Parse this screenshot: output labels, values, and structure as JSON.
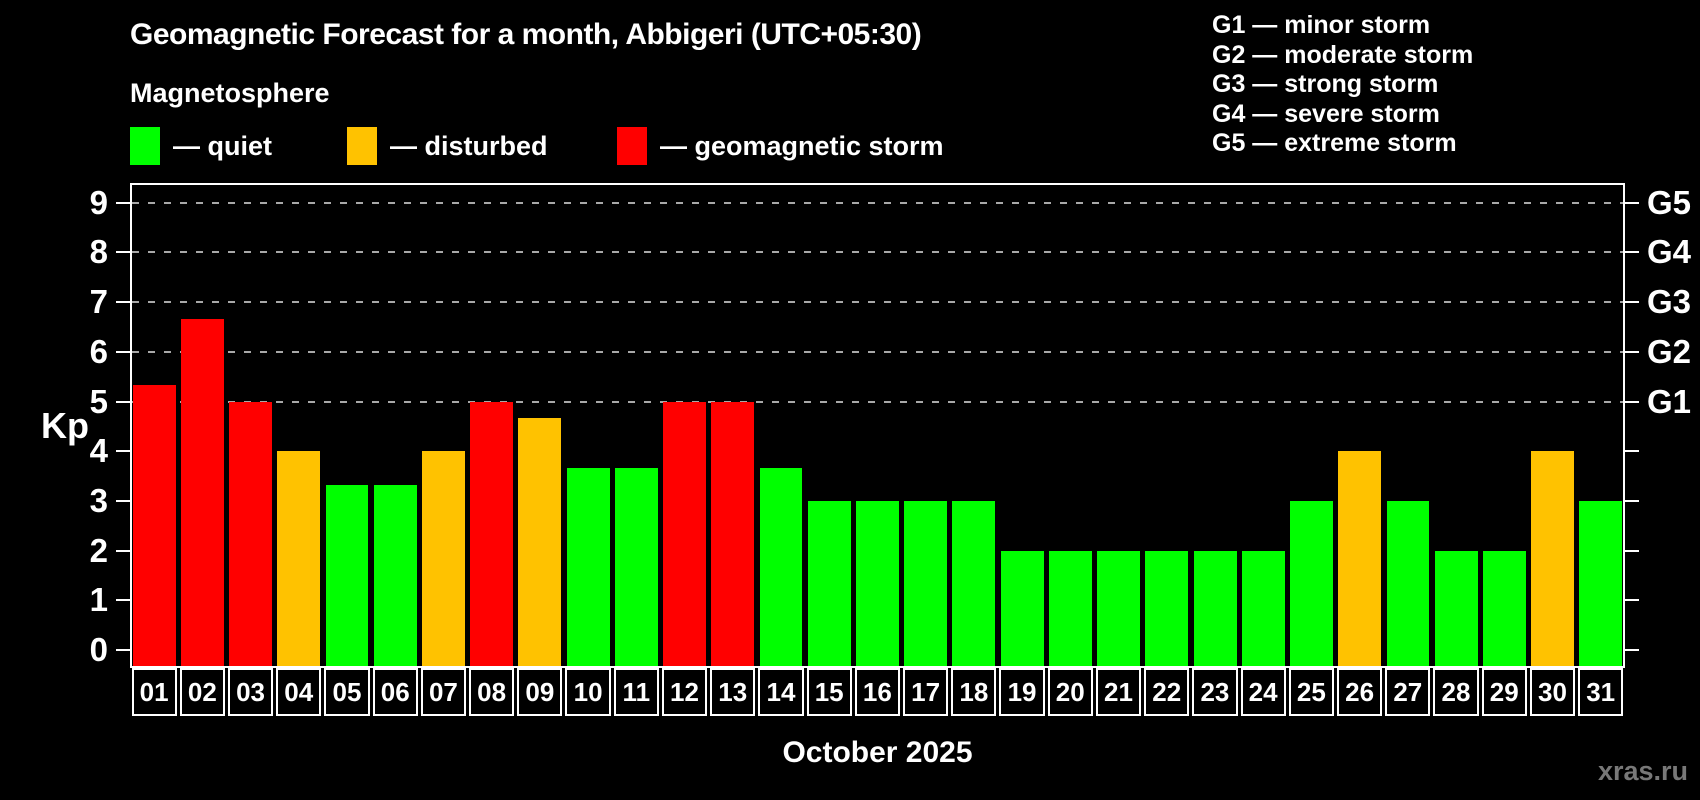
{
  "title": "Geomagnetic Forecast for a month, Abbigeri (UTC+05:30)",
  "subtitle": "Magnetosphere",
  "watermark": "xras.ru",
  "legend": {
    "items": [
      {
        "name": "quiet",
        "label": "— quiet",
        "color": "#00ff00",
        "x": 130
      },
      {
        "name": "disturbed",
        "label": "— disturbed",
        "color": "#ffc200",
        "x": 347
      },
      {
        "name": "storm",
        "label": "— geomagnetic storm",
        "color": "#ff0000",
        "x": 617
      }
    ]
  },
  "g_legend": [
    "G1 — minor storm",
    "G2 — moderate storm",
    "G3 — strong storm",
    "G4 — severe storm",
    "G5 — extreme storm"
  ],
  "chart_data": {
    "type": "bar",
    "title": "Geomagnetic Forecast for a month, Abbigeri (UTC+05:30)",
    "xlabel": "October 2025",
    "ylabel": "Kp",
    "ylim": [
      0,
      9
    ],
    "y_ticks": [
      0,
      1,
      2,
      3,
      4,
      5,
      6,
      7,
      8,
      9
    ],
    "gridlines_at": [
      5,
      6,
      7,
      8,
      9
    ],
    "grid": "dashed-horizontal",
    "legend_position": "top",
    "categories": [
      "01",
      "02",
      "03",
      "04",
      "05",
      "06",
      "07",
      "08",
      "09",
      "10",
      "11",
      "12",
      "13",
      "14",
      "15",
      "16",
      "17",
      "18",
      "19",
      "20",
      "21",
      "22",
      "23",
      "24",
      "25",
      "26",
      "27",
      "28",
      "29",
      "30",
      "31"
    ],
    "values": [
      5.33,
      6.67,
      5.0,
      4.0,
      3.33,
      3.33,
      4.0,
      5.0,
      4.67,
      3.67,
      3.67,
      5.0,
      5.0,
      3.67,
      3.0,
      3.0,
      3.0,
      3.0,
      2.0,
      2.0,
      2.0,
      2.0,
      2.0,
      2.0,
      3.0,
      4.0,
      3.0,
      2.0,
      2.0,
      4.0,
      3.0
    ],
    "status": [
      "storm",
      "storm",
      "storm",
      "disturbed",
      "quiet",
      "quiet",
      "disturbed",
      "storm",
      "disturbed",
      "quiet",
      "quiet",
      "storm",
      "storm",
      "quiet",
      "quiet",
      "quiet",
      "quiet",
      "quiet",
      "quiet",
      "quiet",
      "quiet",
      "quiet",
      "quiet",
      "quiet",
      "quiet",
      "disturbed",
      "quiet",
      "quiet",
      "quiet",
      "disturbed",
      "quiet"
    ],
    "colors": {
      "quiet": "#00ff00",
      "disturbed": "#ffc200",
      "storm": "#ff0000"
    },
    "right_axis": [
      {
        "kp": 9,
        "label": "G5"
      },
      {
        "kp": 8,
        "label": "G4"
      },
      {
        "kp": 7,
        "label": "G3"
      },
      {
        "kp": 6,
        "label": "G2"
      },
      {
        "kp": 5,
        "label": "G1"
      }
    ]
  }
}
